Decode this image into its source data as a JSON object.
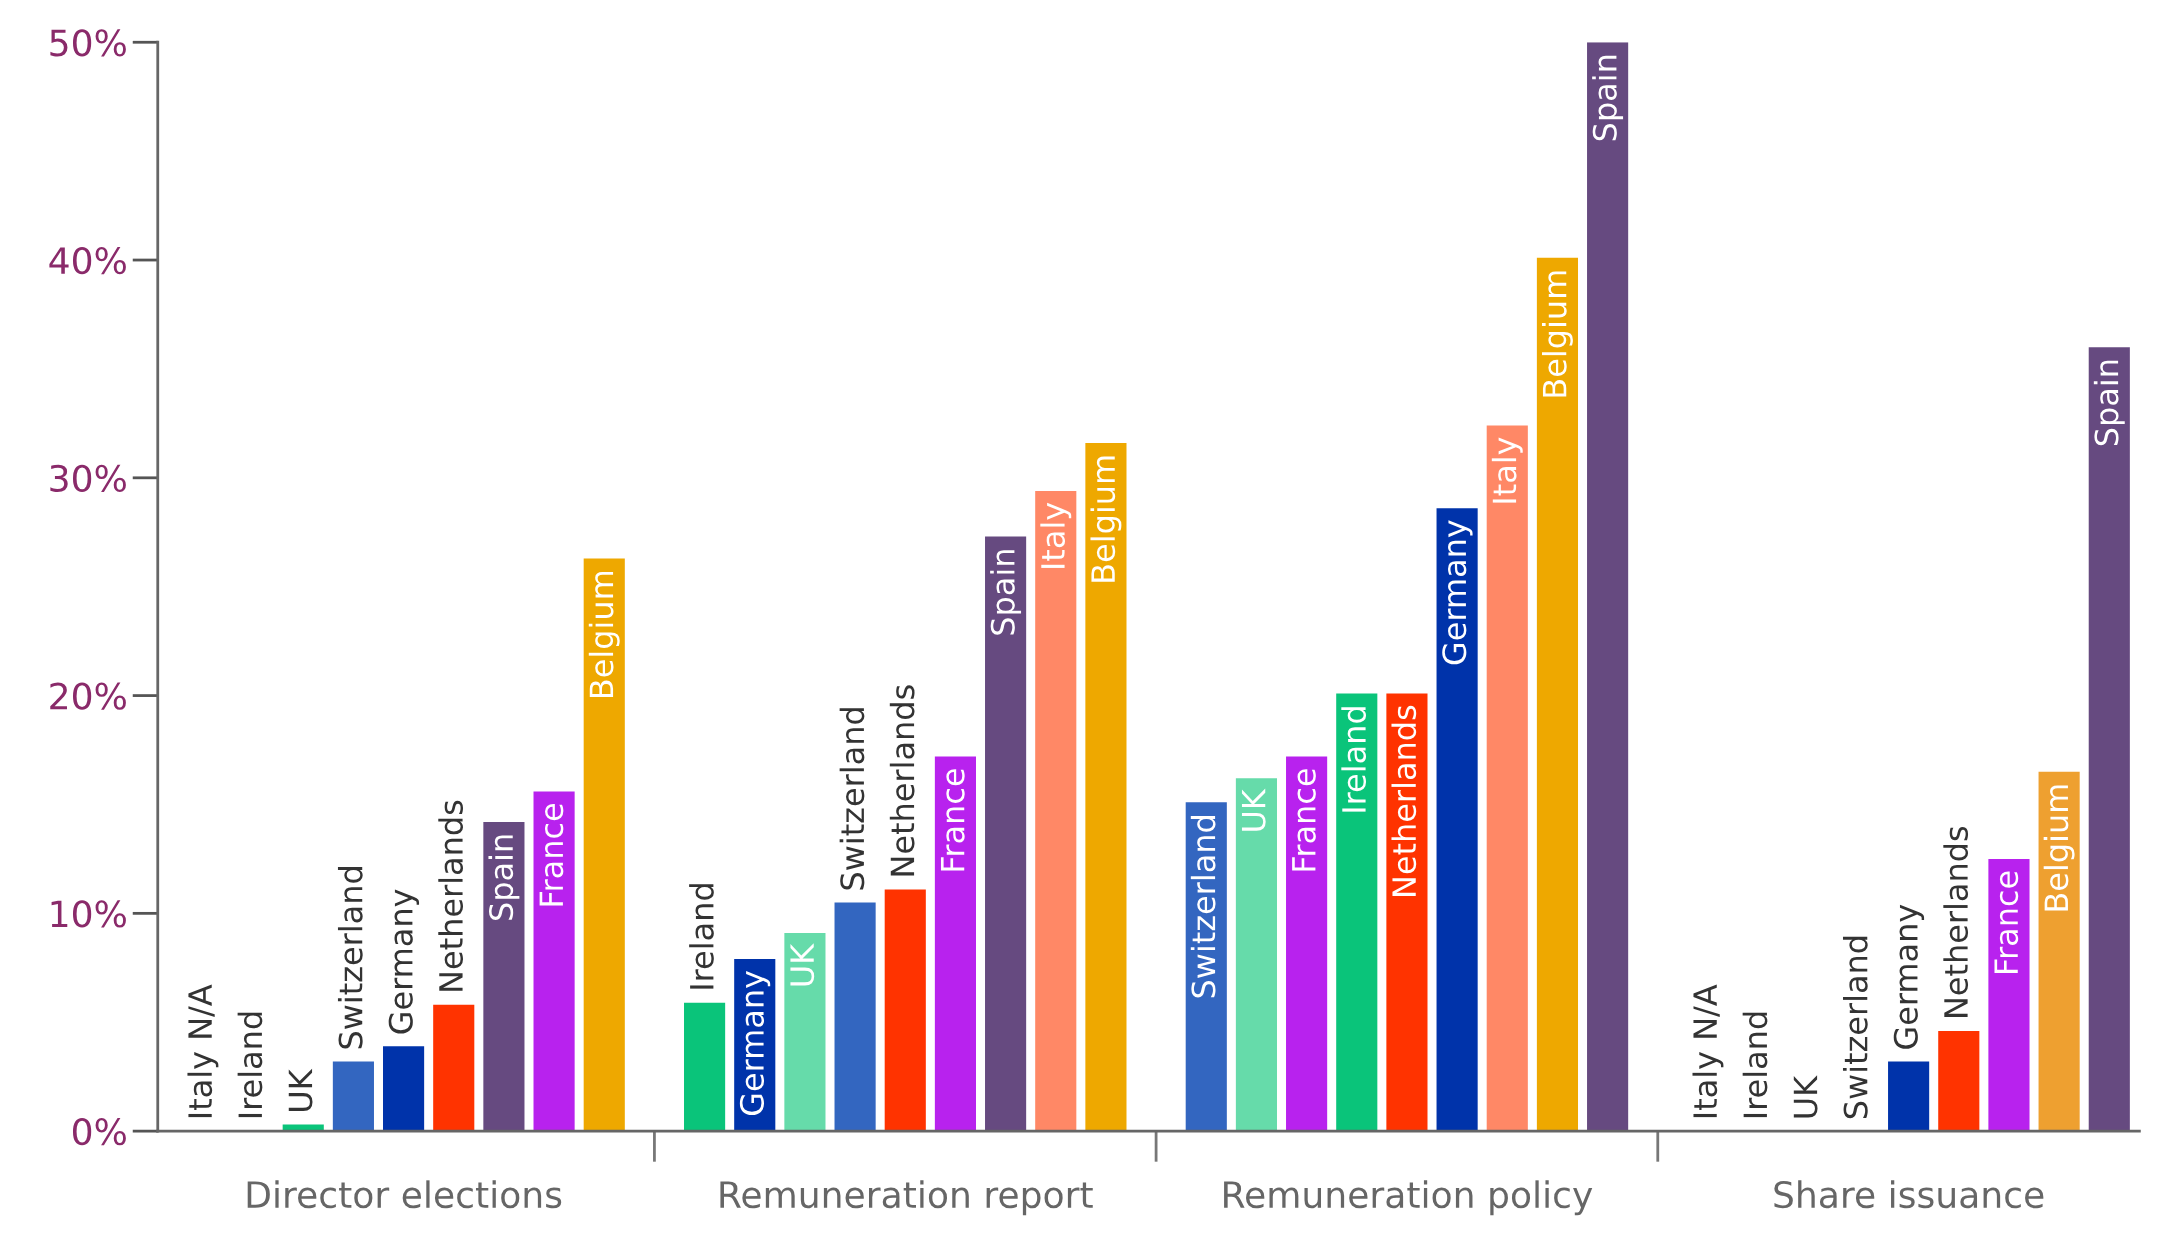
{
  "chart_data": {
    "type": "bar",
    "categories": [
      null,
      null,
      null,
      null,
      null,
      null,
      null,
      null,
      null,
      null,
      null,
      null,
      null,
      null,
      null,
      null,
      null,
      null,
      null,
      null,
      null,
      null,
      null,
      null,
      null,
      null,
      null,
      null,
      null,
      null,
      null,
      null,
      null,
      null,
      null,
      null,
      null,
      null,
      null
    ],
    "value_labels": [
      "Italy N/A",
      "Ireland",
      "UK",
      "Switzerland",
      "Germany",
      "Netherlands",
      "Spain",
      "France",
      "Belgium",
      null,
      "Ireland",
      "Germany",
      "UK",
      "Switzerland",
      "Netherlands",
      "France",
      "Spain",
      "Italy",
      "Belgium",
      null,
      "Switzerland",
      "UK",
      "France",
      "Ireland",
      "Netherlands",
      "Germany",
      "Italy",
      "Belgium",
      "Spain",
      null,
      "Italy N/A",
      "Ireland",
      "UK",
      "Switzerland",
      "Germany",
      "Netherlands",
      "France",
      "Belgium",
      "Spain"
    ],
    "values": [
      null,
      0,
      0.3,
      3.2,
      3.9,
      5.8,
      14.2,
      15.6,
      26.3,
      null,
      5.9,
      7.9,
      9.1,
      10.5,
      11.1,
      17.2,
      27.3,
      29.4,
      31.6,
      null,
      15.1,
      16.2,
      17.2,
      20.1,
      20.1,
      28.6,
      32.4,
      40.1,
      50,
      null,
      null,
      0,
      0,
      0,
      3.2,
      4.6,
      12.5,
      16.5,
      36.0
    ],
    "colors": [
      "#ff8866",
      "#0ac47a",
      "#0ac47a",
      "#3366c0",
      "#0033aa",
      "#ff3300",
      "#664a80",
      "#b822ee",
      "#eea800",
      "#ffffff",
      "#0ac47a",
      "#0033aa",
      "#66dbaa",
      "#3366c0",
      "#ff3300",
      "#b822ee",
      "#664a80",
      "#ff8866",
      "#eea800",
      "#ffffff",
      "#3366c0",
      "#66dbaa",
      "#b822ee",
      "#0ac47a",
      "#ff3300",
      "#0033aa",
      "#ff8866",
      "#eea800",
      "#664a80",
      "#ffffff",
      "#ff8866",
      "#0ac47a",
      "#66dbaa",
      "#3366c0",
      "#0033aa",
      "#ff3300",
      "#b822ee",
      "#eea030",
      "#664a80"
    ],
    "ylim": [
      0,
      50
    ],
    "yticks": [
      {
        "value": 0,
        "label": "0%"
      },
      {
        "value": 10,
        "label": "10%"
      },
      {
        "value": 20,
        "label": "20%"
      },
      {
        "value": 30,
        "label": "30%"
      },
      {
        "value": 40,
        "label": "40%"
      },
      {
        "value": 50,
        "label": "50%"
      }
    ],
    "annotations": [
      "Director elections",
      "Remuneration report",
      "Remuneration policy",
      "Share issuance"
    ],
    "grid": false,
    "legend": false
  }
}
